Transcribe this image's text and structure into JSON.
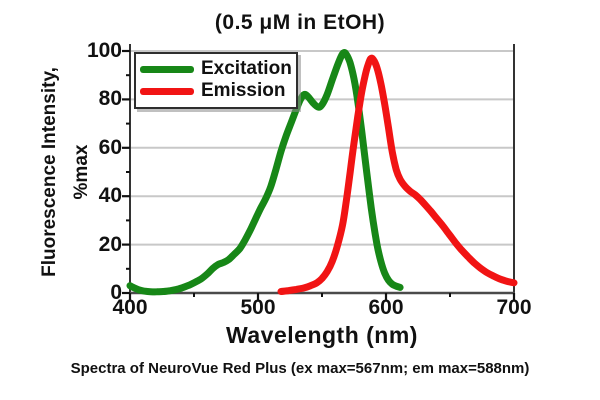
{
  "title": "(0.5 μM in EtOH)",
  "caption": "Spectra of NeuroVue Red Plus (ex max=567nm; em max=588nm)",
  "colors": {
    "excitation": "#178717",
    "emission": "#f11414",
    "grid": "#c8c8c8",
    "axis_side": "#333333",
    "axis_bottom": "#4a4a4a",
    "tick": "#111111",
    "background": "#ffffff"
  },
  "chart_data": {
    "type": "line",
    "title": "(0.5 μM in EtOH)",
    "xlabel": "Wavelength (nm)",
    "ylabel_line1": "Fluorescence Intensity,",
    "ylabel_line2": "%max",
    "xlim": [
      400,
      700
    ],
    "ylim": [
      0,
      100
    ],
    "x_ticks": [
      400,
      500,
      600,
      700
    ],
    "x_minor_ticks": [
      450,
      550,
      650
    ],
    "y_ticks": [
      0,
      20,
      40,
      60,
      80,
      100
    ],
    "y_minor_ticks": [
      10,
      30,
      50,
      70,
      90
    ],
    "grid": "horizontal",
    "legend": {
      "position": "top-left",
      "entries": [
        {
          "label": "Excitation",
          "color": "#178717"
        },
        {
          "label": "Emission",
          "color": "#f11414"
        }
      ]
    },
    "series": [
      {
        "name": "Excitation",
        "color": "#178717",
        "peak_nm": 567,
        "points": [
          [
            400,
            3
          ],
          [
            403,
            2.2
          ],
          [
            407,
            1.3
          ],
          [
            411,
            0.8
          ],
          [
            416,
            0.5
          ],
          [
            421,
            0.5
          ],
          [
            426,
            0.6
          ],
          [
            431,
            0.9
          ],
          [
            436,
            1.4
          ],
          [
            441,
            2.2
          ],
          [
            446,
            3.2
          ],
          [
            451,
            4.5
          ],
          [
            456,
            6
          ],
          [
            461,
            8.2
          ],
          [
            465,
            10.3
          ],
          [
            469,
            11.8
          ],
          [
            473,
            12.6
          ],
          [
            477,
            13.8
          ],
          [
            481,
            15.8
          ],
          [
            486,
            18.5
          ],
          [
            490,
            22
          ],
          [
            494,
            26
          ],
          [
            498,
            30.5
          ],
          [
            502,
            35
          ],
          [
            506,
            39
          ],
          [
            510,
            44
          ],
          [
            514,
            51
          ],
          [
            518,
            58.5
          ],
          [
            522,
            65
          ],
          [
            526,
            70.5
          ],
          [
            530,
            76
          ],
          [
            533,
            79.8
          ],
          [
            536,
            82
          ],
          [
            539,
            81.2
          ],
          [
            543,
            78.6
          ],
          [
            547,
            76.8
          ],
          [
            550,
            77.8
          ],
          [
            554,
            82
          ],
          [
            558,
            88
          ],
          [
            562,
            94
          ],
          [
            565,
            97.8
          ],
          [
            567,
            99.3
          ],
          [
            569,
            98.6
          ],
          [
            572,
            95
          ],
          [
            575,
            88.5
          ],
          [
            578,
            79
          ],
          [
            581,
            67
          ],
          [
            584,
            54
          ],
          [
            587,
            41
          ],
          [
            590,
            29.5
          ],
          [
            593,
            20
          ],
          [
            596,
            13
          ],
          [
            599,
            8.2
          ],
          [
            602,
            5.2
          ],
          [
            605,
            3.6
          ],
          [
            608,
            2.8
          ],
          [
            611,
            2.3
          ]
        ]
      },
      {
        "name": "Emission",
        "color": "#f11414",
        "peak_nm": 588,
        "points": [
          [
            518,
            0.6
          ],
          [
            524,
            1
          ],
          [
            530,
            1.5
          ],
          [
            536,
            2.1
          ],
          [
            541,
            3
          ],
          [
            546,
            4.2
          ],
          [
            550,
            6
          ],
          [
            554,
            8.8
          ],
          [
            558,
            13
          ],
          [
            562,
            19.5
          ],
          [
            566,
            28
          ],
          [
            569,
            38
          ],
          [
            572,
            50
          ],
          [
            575,
            62
          ],
          [
            578,
            73
          ],
          [
            581,
            83
          ],
          [
            584,
            90.5
          ],
          [
            586,
            94.3
          ],
          [
            588,
            96.8
          ],
          [
            590,
            96.5
          ],
          [
            593,
            93
          ],
          [
            596,
            86.5
          ],
          [
            599,
            78
          ],
          [
            602,
            68
          ],
          [
            605,
            58
          ],
          [
            608,
            51
          ],
          [
            611,
            47
          ],
          [
            615,
            44
          ],
          [
            619,
            42
          ],
          [
            623,
            40.5
          ],
          [
            627,
            38.5
          ],
          [
            631,
            36.2
          ],
          [
            635,
            33.8
          ],
          [
            639,
            31.2
          ],
          [
            644,
            28
          ],
          [
            649,
            24.5
          ],
          [
            654,
            21
          ],
          [
            659,
            17.8
          ],
          [
            664,
            15
          ],
          [
            669,
            12.4
          ],
          [
            674,
            10.2
          ],
          [
            679,
            8.4
          ],
          [
            684,
            7
          ],
          [
            689,
            5.8
          ],
          [
            694,
            4.9
          ],
          [
            700,
            4.2
          ]
        ]
      }
    ]
  }
}
